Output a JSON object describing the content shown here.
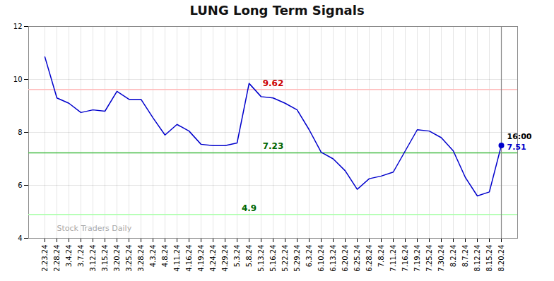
{
  "chart_data": {
    "type": "line",
    "title": "LUNG Long Term Signals",
    "categories": [
      "2.23.24",
      "2.28.24",
      "3.4.24",
      "3.7.24",
      "3.12.24",
      "3.15.24",
      "3.20.24",
      "3.25.24",
      "3.28.24",
      "4.3.24",
      "4.8.24",
      "4.11.24",
      "4.16.24",
      "4.19.24",
      "4.24.24",
      "4.29.24",
      "5.3.24",
      "5.8.24",
      "5.13.24",
      "5.16.24",
      "5.22.24",
      "5.29.24",
      "6.3.24",
      "6.10.24",
      "6.13.24",
      "6.20.24",
      "6.25.24",
      "6.28.24",
      "7.8.24",
      "7.11.24",
      "7.16.24",
      "7.19.24",
      "7.25.24",
      "7.30.24",
      "8.2.24",
      "8.7.24",
      "8.12.24",
      "8.15.24",
      "8.20.24"
    ],
    "values": [
      10.85,
      9.3,
      9.1,
      8.75,
      8.85,
      8.8,
      9.55,
      9.25,
      9.25,
      8.55,
      7.9,
      8.3,
      8.05,
      7.55,
      7.5,
      7.5,
      7.6,
      9.85,
      9.35,
      9.3,
      9.1,
      8.85,
      8.1,
      7.25,
      7.0,
      6.55,
      5.85,
      6.25,
      6.35,
      6.5,
      7.3,
      8.1,
      8.05,
      7.8,
      7.3,
      6.3,
      5.6,
      5.75,
      7.51
    ],
    "color": "#0000cc",
    "ylim": [
      4,
      12
    ],
    "yticks": [
      4,
      6,
      8,
      10,
      12
    ],
    "grid": true,
    "reference_lines": [
      {
        "y": 9.62,
        "color": "#ffbbbb",
        "label": "9.62",
        "label_color": "#cc0000",
        "x": "5.16.24"
      },
      {
        "y": 7.23,
        "color": "#44bb44",
        "label": "7.23",
        "label_color": "#006600",
        "x": "5.16.24"
      },
      {
        "y": 4.9,
        "color": "#aaffaa",
        "label": "4.9",
        "label_color": "#006600",
        "x": "5.8.24"
      }
    ],
    "annotations": [
      {
        "text": "16:00",
        "x": "8.20.24",
        "y": 7.51,
        "color": "#000000"
      },
      {
        "text": "7.51",
        "x": "8.20.24",
        "y": 7.51,
        "color": "#0000cc"
      }
    ],
    "watermark": {
      "text": "Stock Traders Daily",
      "x": "2.28.24",
      "y": 4.18,
      "color": "#aaaaaa"
    }
  }
}
